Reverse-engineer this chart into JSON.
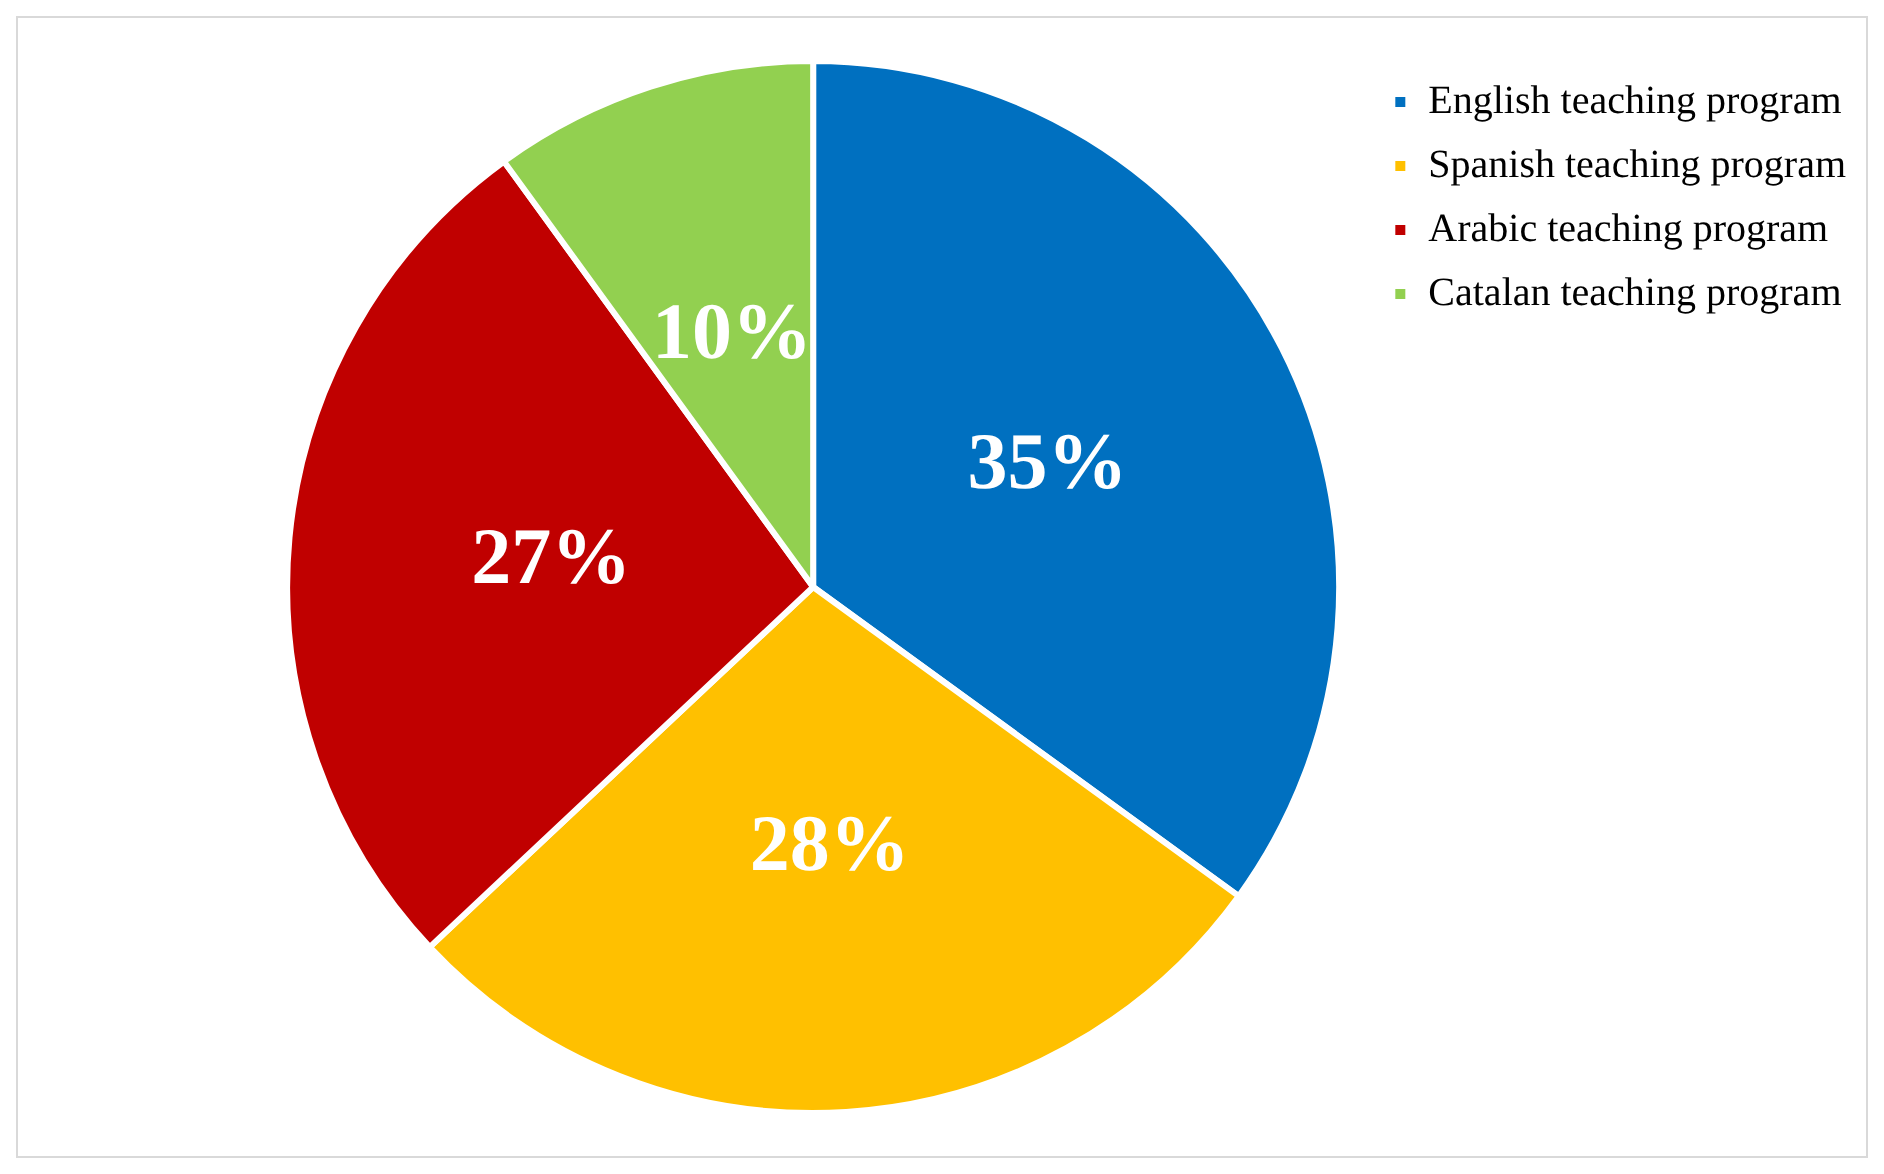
{
  "chart_data": {
    "type": "pie",
    "categories": [
      "English teaching program",
      "Spanish teaching program",
      "Arabic teaching program",
      "Catalan teaching program"
    ],
    "values": [
      35,
      28,
      27,
      10
    ],
    "colors": [
      "#0070c0",
      "#ffc000",
      "#c00000",
      "#92d050"
    ],
    "value_labels": [
      "35%",
      "28%",
      "27%",
      "10%"
    ],
    "legend": "top right"
  }
}
